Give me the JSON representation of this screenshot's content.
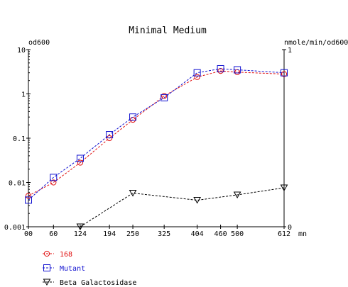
{
  "chart_data": {
    "type": "line",
    "title": "Minimal Medium",
    "y_left": {
      "label": "od600",
      "scale": "log",
      "lim": [
        0.001,
        10
      ],
      "ticks": [
        0.001,
        0.01,
        0.1,
        1,
        10
      ],
      "tick_labels": [
        "0.001",
        "0.01",
        "0.1",
        "1",
        "10"
      ]
    },
    "y_right": {
      "label": "nmole/min/od600",
      "scale": "linear",
      "lim": [
        0,
        1
      ],
      "ticks": [
        0,
        1
      ],
      "tick_labels": [
        "0",
        "1"
      ]
    },
    "x": {
      "unit_label": "mn",
      "lim": [
        0,
        612
      ],
      "ticks": [
        0,
        60,
        124,
        194,
        250,
        325,
        404,
        460,
        500,
        612
      ],
      "tick_labels": [
        "00",
        "60",
        "124",
        "194",
        "250",
        "325",
        "404",
        "460",
        "500",
        "612"
      ]
    },
    "series": [
      {
        "name": "168",
        "axis": "left",
        "color": "#e01010",
        "marker": "circle",
        "x": [
          0,
          60,
          124,
          194,
          250,
          325,
          404,
          460,
          500,
          612
        ],
        "y": [
          0.005,
          0.01,
          0.028,
          0.1,
          0.26,
          0.9,
          2.4,
          3.3,
          3.1,
          2.8
        ]
      },
      {
        "name": "Mutant",
        "axis": "left",
        "color": "#1010d0",
        "marker": "square",
        "x": [
          0,
          60,
          124,
          194,
          250,
          325,
          404,
          460,
          500,
          612
        ],
        "y": [
          0.004,
          0.013,
          0.035,
          0.12,
          0.3,
          0.82,
          3.0,
          3.7,
          3.5,
          3.0
        ]
      },
      {
        "name": "Beta Galactosidase",
        "axis": "right",
        "color": "#000000",
        "marker": "triangle-down",
        "x": [
          124,
          250,
          404,
          500,
          612
        ],
        "y": [
          0.0,
          0.19,
          0.15,
          0.18,
          0.22
        ]
      }
    ]
  }
}
